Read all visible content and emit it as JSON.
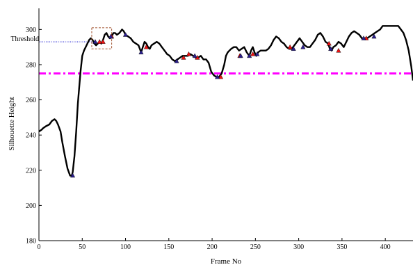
{
  "chart_data": {
    "type": "line",
    "xlabel": "Frame No",
    "ylabel": "Silhouette Height",
    "xlim": [
      0,
      432
    ],
    "ylim": [
      180,
      312
    ],
    "xticks": [
      0,
      50,
      100,
      150,
      200,
      250,
      300,
      350,
      400
    ],
    "yticks": [
      180,
      200,
      220,
      240,
      260,
      280,
      300
    ],
    "threshold_label": "Threshold",
    "threshold_value": 293,
    "reference_line": {
      "y": 275,
      "style": "dash-dot",
      "color": "#ff00ff"
    },
    "series": [
      {
        "color": "#000000",
        "x": [
          0,
          3,
          5,
          8,
          12,
          15,
          18,
          20,
          22,
          25,
          27,
          30,
          33,
          36,
          38,
          39,
          41,
          43,
          45,
          48,
          50,
          52,
          55,
          58,
          60,
          62,
          64,
          66,
          68,
          70,
          72,
          74,
          76,
          78,
          80,
          82,
          84,
          86,
          88,
          90,
          93,
          96,
          98,
          100,
          103,
          106,
          109,
          112,
          115,
          118,
          120,
          122,
          124,
          126,
          128,
          130,
          133,
          136,
          139,
          142,
          145,
          148,
          151,
          154,
          157,
          160,
          163,
          166,
          169,
          172,
          175,
          178,
          181,
          184,
          187,
          190,
          193,
          196,
          199,
          202,
          205,
          208,
          211,
          214,
          216,
          218,
          220,
          222,
          225,
          228,
          231,
          234,
          237,
          240,
          243,
          245,
          247,
          249,
          251,
          253,
          256,
          259,
          262,
          265,
          268,
          271,
          274,
          277,
          280,
          283,
          286,
          289,
          292,
          295,
          298,
          301,
          304,
          307,
          310,
          313,
          316,
          319,
          322,
          325,
          328,
          331,
          334,
          336,
          338,
          340,
          343,
          346,
          349,
          352,
          355,
          358,
          361,
          364,
          367,
          370,
          373,
          376,
          379,
          382,
          385,
          388,
          391,
          394,
          397,
          400,
          405,
          410,
          415,
          418,
          421,
          424,
          427,
          430,
          432
        ],
        "y": [
          242,
          243,
          244,
          245,
          246,
          248,
          249,
          248,
          246,
          242,
          236,
          228,
          221,
          217,
          217,
          219,
          228,
          242,
          258,
          276,
          285,
          288,
          291,
          294,
          295,
          294,
          292,
          291,
          292,
          293,
          292,
          294,
          297,
          298,
          296,
          295,
          296,
          298,
          298,
          297,
          298,
          300,
          299,
          297,
          296,
          295,
          293,
          292,
          291,
          287,
          290,
          293,
          292,
          290,
          289,
          291,
          292,
          293,
          292,
          290,
          288,
          286,
          285,
          283,
          282,
          283,
          284,
          285,
          285,
          285,
          286,
          285,
          284,
          284,
          285,
          283,
          283,
          281,
          276,
          274,
          273,
          273,
          275,
          280,
          285,
          287,
          288,
          289,
          290,
          290,
          288,
          289,
          290,
          287,
          285,
          288,
          290,
          287,
          285,
          287,
          288,
          288,
          288,
          289,
          291,
          294,
          296,
          295,
          293,
          292,
          290,
          289,
          289,
          291,
          293,
          295,
          293,
          291,
          290,
          290,
          292,
          294,
          297,
          298,
          296,
          293,
          292,
          289,
          288,
          290,
          291,
          293,
          292,
          290,
          293,
          296,
          298,
          299,
          298,
          297,
          295,
          295,
          295,
          296,
          297,
          298,
          299,
          300,
          302,
          302,
          302,
          302,
          302,
          300,
          298,
          294,
          288,
          279,
          271
        ]
      }
    ],
    "markers_red": [
      [
        70,
        293
      ],
      [
        74,
        293
      ],
      [
        84,
        296
      ],
      [
        124,
        290
      ],
      [
        167,
        284
      ],
      [
        173,
        286
      ],
      [
        183,
        284
      ],
      [
        210,
        273
      ],
      [
        232,
        285
      ],
      [
        247,
        286
      ],
      [
        290,
        290
      ],
      [
        335,
        292
      ],
      [
        346,
        288
      ],
      [
        378,
        295
      ]
    ],
    "markers_blue": [
      [
        39,
        217
      ],
      [
        65,
        293
      ],
      [
        83,
        296
      ],
      [
        100,
        297
      ],
      [
        118,
        287
      ],
      [
        159,
        282
      ],
      [
        180,
        285
      ],
      [
        206,
        273
      ],
      [
        233,
        285
      ],
      [
        243,
        285
      ],
      [
        252,
        286
      ],
      [
        294,
        289
      ],
      [
        305,
        290
      ],
      [
        337,
        289
      ],
      [
        375,
        295
      ],
      [
        387,
        296
      ]
    ],
    "highlight_box": {
      "x": [
        61,
        84
      ],
      "y": [
        289,
        301
      ]
    }
  }
}
